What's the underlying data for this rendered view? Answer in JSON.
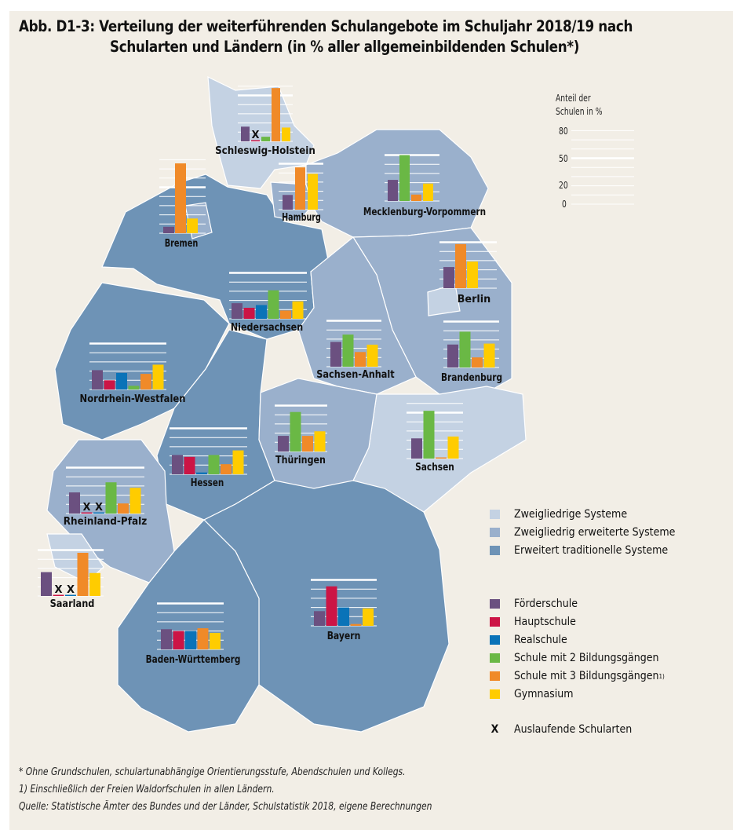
{
  "title_line1": "Abb. D1-3:  Verteilung der weiterführenden Schulangebote im Schuljahr 2018/19 nach",
  "title_line2": "Schularten und Ländern (in % aller allgemeinbildenden Schulen*)",
  "axis": {
    "label_line1": "Anteil der",
    "label_line2": "Schulen in %",
    "ticks": [
      "80",
      "50",
      "20",
      "0"
    ]
  },
  "system_legend": [
    {
      "label": "Zweigliedrige Systeme",
      "color": "#c4d2e3"
    },
    {
      "label": "Zweigliedrig erweiterte Systeme",
      "color": "#9ab0cc"
    },
    {
      "label": "Erweitert traditionelle Systeme",
      "color": "#6e93b6"
    }
  ],
  "school_legend": [
    {
      "label": "Förderschule",
      "color": "#6b5080"
    },
    {
      "label": "Hauptschule",
      "color": "#cc1445"
    },
    {
      "label": "Realschule",
      "color": "#0a73b8"
    },
    {
      "label": "Schule mit 2 Bildungsgängen",
      "color": "#6ab845"
    },
    {
      "label": "Schule mit 3 Bildungsgängen",
      "sup": "1)",
      "color": "#f08a28"
    },
    {
      "label": "Gymnasium",
      "color": "#ffcc00"
    }
  ],
  "x_legend": {
    "symbol": "X",
    "label": "Auslaufende Schularten"
  },
  "footnotes": [
    "*  Ohne Grundschulen, schulartunabhängige Orientierungsstufe, Abendschulen und Kollegs.",
    "1) Einschließlich der Freien Waldorfschulen in allen Ländern.",
    "Quelle: Statistische Ämter des Bundes und der Länder, Schulstatistik 2018, eigene Berechnungen"
  ],
  "chart_data": {
    "type": "bar",
    "categories": [
      "Förderschule",
      "Hauptschule",
      "Realschule",
      "Schule mit 2 Bildungsgängen",
      "Schule mit 3 Bildungsgängen",
      "Gymnasium"
    ],
    "ylim": [
      0,
      80
    ],
    "ylabel": "Anteil der Schulen in %",
    "states": [
      {
        "id": "sh",
        "name": "Schleswig-Holstein",
        "system": 0,
        "values": [
          16,
          "X",
          null,
          5,
          58,
          15
        ]
      },
      {
        "id": "hh",
        "name": "Hamburg",
        "system": 1,
        "values": [
          16,
          null,
          null,
          null,
          46,
          39
        ]
      },
      {
        "id": "mv",
        "name": "Mecklenburg-Vorpommern",
        "system": 1,
        "values": [
          23,
          null,
          null,
          50,
          7,
          19
        ]
      },
      {
        "id": "hb",
        "name": "Bremen",
        "system": 1,
        "values": [
          7,
          null,
          null,
          null,
          76,
          16
        ]
      },
      {
        "id": "be",
        "name": "Berlin",
        "system": 0,
        "values": [
          23,
          null,
          null,
          null,
          48,
          29
        ]
      },
      {
        "id": "ni",
        "name": "Niedersachsen",
        "system": 2,
        "values": [
          17,
          12,
          15,
          31,
          9,
          19
        ]
      },
      {
        "id": "nw",
        "name": "Nordrhein-Westfalen",
        "system": 2,
        "values": [
          21,
          10,
          18,
          4,
          17,
          27
        ]
      },
      {
        "id": "st",
        "name": "Sachsen-Anhalt",
        "system": 1,
        "values": [
          27,
          null,
          null,
          35,
          16,
          24
        ]
      },
      {
        "id": "bb",
        "name": "Brandenburg",
        "system": 1,
        "values": [
          25,
          null,
          null,
          39,
          11,
          26
        ]
      },
      {
        "id": "he",
        "name": "Hessen",
        "system": 2,
        "values": [
          21,
          19,
          2,
          21,
          11,
          26
        ]
      },
      {
        "id": "th",
        "name": "Thüringen",
        "system": 1,
        "values": [
          17,
          null,
          null,
          43,
          17,
          22
        ]
      },
      {
        "id": "sn",
        "name": "Sachsen",
        "system": 0,
        "values": [
          22,
          null,
          null,
          52,
          1,
          24
        ]
      },
      {
        "id": "rp",
        "name": "Rheinland-Pfalz",
        "system": 1,
        "values": [
          23,
          "X",
          "X",
          34,
          11,
          28
        ]
      },
      {
        "id": "sl",
        "name": "Saarland",
        "system": 0,
        "values": [
          26,
          "X",
          "X",
          null,
          47,
          25
        ]
      },
      {
        "id": "by",
        "name": "Bayern",
        "system": 2,
        "values": [
          16,
          43,
          20,
          null,
          2,
          19
        ]
      },
      {
        "id": "bw",
        "name": "Baden-Württemberg",
        "system": 2,
        "values": [
          22,
          20,
          20,
          null,
          23,
          18
        ]
      }
    ]
  }
}
